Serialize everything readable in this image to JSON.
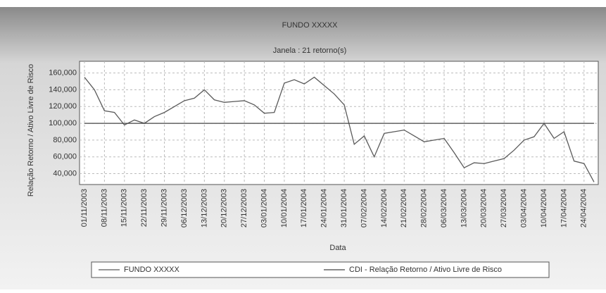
{
  "chart_data": {
    "type": "line",
    "title": "FUNDO XXXXX",
    "subtitle": "Janela : 21 retorno(s)",
    "y_label": "Relação Retorno / Ativo Livre de Risco",
    "x_label": "Data",
    "categories": [
      "01/11/2003",
      null,
      "08/11/2003",
      null,
      "15/11/2003",
      null,
      "22/11/2003",
      null,
      "29/11/2003",
      null,
      "06/12/2003",
      null,
      "13/12/2003",
      null,
      "20/12/2003",
      null,
      "27/12/2003",
      null,
      "03/01/2004",
      null,
      "10/01/2004",
      null,
      "17/01/2004",
      null,
      "24/01/2004",
      null,
      "31/01/2004",
      null,
      "07/02/2004",
      null,
      "14/02/2004",
      null,
      "21/02/2004",
      null,
      "28/02/2004",
      null,
      "06/03/2004",
      null,
      "13/03/2004",
      null,
      "20/03/2004",
      null,
      "27/03/2004",
      null,
      "03/04/2004",
      null,
      "10/04/2004",
      null,
      "17/04/2004",
      null,
      "24/04/2004",
      null
    ],
    "series": [
      {
        "name": "FUNDO XXXXX",
        "color": "#5a5a5a",
        "values": [
          155000,
          140000,
          115000,
          113000,
          98000,
          104000,
          100000,
          108000,
          113000,
          120000,
          127000,
          130000,
          140000,
          128000,
          125000,
          126000,
          127000,
          122000,
          112000,
          113000,
          148000,
          152000,
          147000,
          155000,
          145000,
          135000,
          122000,
          75000,
          85000,
          60000,
          88000,
          90000,
          92000,
          85000,
          78000,
          80000,
          82000,
          65000,
          47000,
          53000,
          52000,
          55000,
          58000,
          68000,
          80000,
          84000,
          100000,
          82000,
          90000,
          55000,
          52000,
          30000
        ]
      },
      {
        "name": "CDI - Relação Retorno / Ativo Livre de Risco",
        "color": "#444444",
        "values": [
          100000,
          100000,
          100000,
          100000,
          100000,
          100000,
          100000,
          100000,
          100000,
          100000,
          100000,
          100000,
          100000,
          100000,
          100000,
          100000,
          100000,
          100000,
          100000,
          100000,
          100000,
          100000,
          100000,
          100000,
          100000,
          100000,
          100000,
          100000,
          100000,
          100000,
          100000,
          100000,
          100000,
          100000,
          100000,
          100000,
          100000,
          100000,
          100000,
          100000,
          100000,
          100000,
          100000,
          100000,
          100000,
          100000,
          100000,
          100000,
          100000,
          100000,
          100000,
          100000
        ]
      }
    ],
    "ylim": [
      27000,
      174000
    ],
    "yticks": [
      {
        "value": 40000,
        "label": "40,000"
      },
      {
        "value": 60000,
        "label": "60,000"
      },
      {
        "value": 80000,
        "label": "80,000"
      },
      {
        "value": 100000,
        "label": "100,000"
      },
      {
        "value": 120000,
        "label": "120,000"
      },
      {
        "value": 140000,
        "label": "140,000"
      },
      {
        "value": 160000,
        "label": "160,000"
      }
    ],
    "grid": true
  }
}
